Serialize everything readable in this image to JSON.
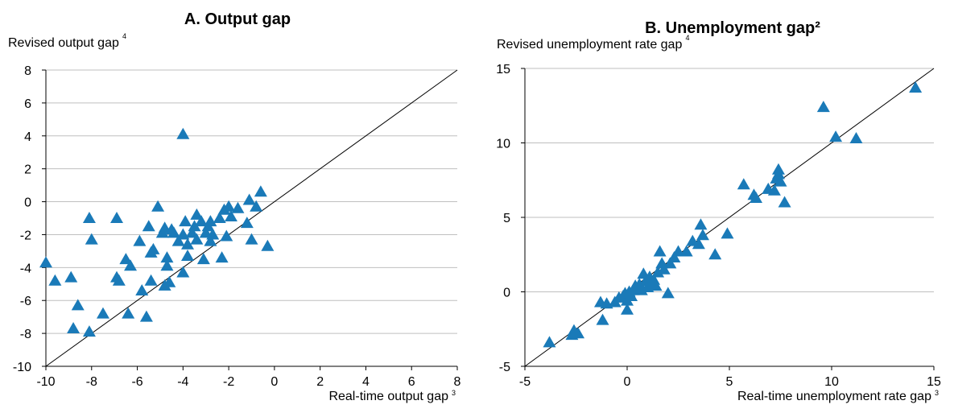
{
  "colors": {
    "marker": "#1a7ab8",
    "grid": "#bfbfbf",
    "diagonal": "#000000",
    "axis": "#000000"
  },
  "chart_data": [
    {
      "type": "scatter",
      "title": "A. Output gap",
      "ylabel": "Revised output gap",
      "ylabel_note": "4",
      "xlabel": "Real-time output gap",
      "xlabel_note": "3",
      "xlim": [
        -10,
        8
      ],
      "ylim": [
        -10,
        8
      ],
      "xticks": [
        -10,
        -8,
        -6,
        -4,
        -2,
        0,
        2,
        4,
        6,
        8
      ],
      "yticks": [
        -10,
        -8,
        -6,
        -4,
        -2,
        0,
        2,
        4,
        6,
        8
      ],
      "grid": "horizontal",
      "reference_line": "45-degree",
      "marker": "triangle",
      "points": [
        [
          -10.0,
          -3.7
        ],
        [
          -9.6,
          -4.8
        ],
        [
          -8.9,
          -4.6
        ],
        [
          -8.8,
          -7.7
        ],
        [
          -8.6,
          -6.3
        ],
        [
          -8.1,
          -7.9
        ],
        [
          -8.1,
          -1.0
        ],
        [
          -8.0,
          -2.3
        ],
        [
          -7.5,
          -6.8
        ],
        [
          -6.9,
          -1.0
        ],
        [
          -6.9,
          -4.6
        ],
        [
          -6.8,
          -4.8
        ],
        [
          -6.5,
          -3.5
        ],
        [
          -6.3,
          -3.9
        ],
        [
          -6.4,
          -6.8
        ],
        [
          -5.9,
          -2.4
        ],
        [
          -5.8,
          -5.4
        ],
        [
          -5.6,
          -7.0
        ],
        [
          -5.5,
          -1.5
        ],
        [
          -5.4,
          -3.1
        ],
        [
          -5.3,
          -2.9
        ],
        [
          -5.4,
          -4.8
        ],
        [
          -5.1,
          -0.3
        ],
        [
          -4.9,
          -1.9
        ],
        [
          -4.8,
          -1.6
        ],
        [
          -4.7,
          -3.4
        ],
        [
          -4.7,
          -3.9
        ],
        [
          -4.8,
          -5.1
        ],
        [
          -4.6,
          -4.9
        ],
        [
          -4.5,
          -1.7
        ],
        [
          -4.4,
          -1.9
        ],
        [
          -4.2,
          -2.4
        ],
        [
          -4.0,
          4.1
        ],
        [
          -4.0,
          -2.0
        ],
        [
          -3.9,
          -1.2
        ],
        [
          -3.8,
          -2.6
        ],
        [
          -3.8,
          -3.3
        ],
        [
          -4.0,
          -4.3
        ],
        [
          -3.6,
          -1.9
        ],
        [
          -3.5,
          -1.5
        ],
        [
          -3.4,
          -0.8
        ],
        [
          -3.4,
          -2.3
        ],
        [
          -3.2,
          -1.2
        ],
        [
          -3.1,
          -3.5
        ],
        [
          -3.0,
          -1.9
        ],
        [
          -2.9,
          -1.5
        ],
        [
          -2.8,
          -2.4
        ],
        [
          -2.8,
          -1.2
        ],
        [
          -2.7,
          -2.0
        ],
        [
          -2.4,
          -1.0
        ],
        [
          -2.3,
          -3.4
        ],
        [
          -2.2,
          -0.5
        ],
        [
          -2.1,
          -2.1
        ],
        [
          -2.0,
          -0.3
        ],
        [
          -1.9,
          -0.9
        ],
        [
          -1.6,
          -0.4
        ],
        [
          -1.2,
          -1.3
        ],
        [
          -1.1,
          0.1
        ],
        [
          -1.0,
          -2.3
        ],
        [
          -0.8,
          -0.3
        ],
        [
          -0.6,
          0.6
        ],
        [
          -0.3,
          -2.7
        ]
      ]
    },
    {
      "type": "scatter",
      "title": "B. Unemployment gap²",
      "ylabel": "Revised unemployment rate gap",
      "ylabel_note": "4",
      "xlabel": "Real-time unemployment rate gap",
      "xlabel_note": "3",
      "xlim": [
        -5,
        15
      ],
      "ylim": [
        -5,
        15
      ],
      "xticks": [
        -5,
        0,
        5,
        10,
        15
      ],
      "yticks": [
        -5,
        0,
        5,
        10,
        15
      ],
      "grid": "horizontal",
      "reference_line": "45-degree",
      "marker": "triangle",
      "points": [
        [
          -3.8,
          -3.4
        ],
        [
          -2.7,
          -2.9
        ],
        [
          -2.6,
          -2.6
        ],
        [
          -2.4,
          -2.8
        ],
        [
          -1.3,
          -0.7
        ],
        [
          -1.2,
          -1.9
        ],
        [
          -1.0,
          -0.8
        ],
        [
          -0.6,
          -0.7
        ],
        [
          -0.4,
          -0.4
        ],
        [
          -0.2,
          -0.3
        ],
        [
          -0.1,
          -0.1
        ],
        [
          0.0,
          -1.2
        ],
        [
          0.0,
          -0.6
        ],
        [
          0.1,
          0.0
        ],
        [
          0.2,
          -0.3
        ],
        [
          0.3,
          0.1
        ],
        [
          0.4,
          0.4
        ],
        [
          0.5,
          0.2
        ],
        [
          0.6,
          0.5
        ],
        [
          0.7,
          0.1
        ],
        [
          0.8,
          1.2
        ],
        [
          0.9,
          0.7
        ],
        [
          1.0,
          0.3
        ],
        [
          1.1,
          1.0
        ],
        [
          1.2,
          0.6
        ],
        [
          1.3,
          0.8
        ],
        [
          1.4,
          0.4
        ],
        [
          1.5,
          1.3
        ],
        [
          1.6,
          2.7
        ],
        [
          1.7,
          1.9
        ],
        [
          1.8,
          1.5
        ],
        [
          2.0,
          -0.1
        ],
        [
          2.1,
          1.9
        ],
        [
          2.3,
          2.3
        ],
        [
          2.5,
          2.7
        ],
        [
          2.9,
          2.7
        ],
        [
          3.2,
          3.4
        ],
        [
          3.5,
          3.2
        ],
        [
          3.6,
          4.5
        ],
        [
          3.7,
          3.8
        ],
        [
          4.3,
          2.5
        ],
        [
          4.9,
          3.9
        ],
        [
          5.7,
          7.2
        ],
        [
          6.2,
          6.5
        ],
        [
          6.3,
          6.3
        ],
        [
          6.9,
          6.9
        ],
        [
          7.2,
          6.8
        ],
        [
          7.3,
          7.6
        ],
        [
          7.4,
          7.9
        ],
        [
          7.4,
          8.2
        ],
        [
          7.5,
          7.4
        ],
        [
          7.7,
          6.0
        ],
        [
          9.6,
          12.4
        ],
        [
          10.2,
          10.4
        ],
        [
          11.2,
          10.3
        ],
        [
          14.1,
          13.7
        ]
      ]
    }
  ]
}
